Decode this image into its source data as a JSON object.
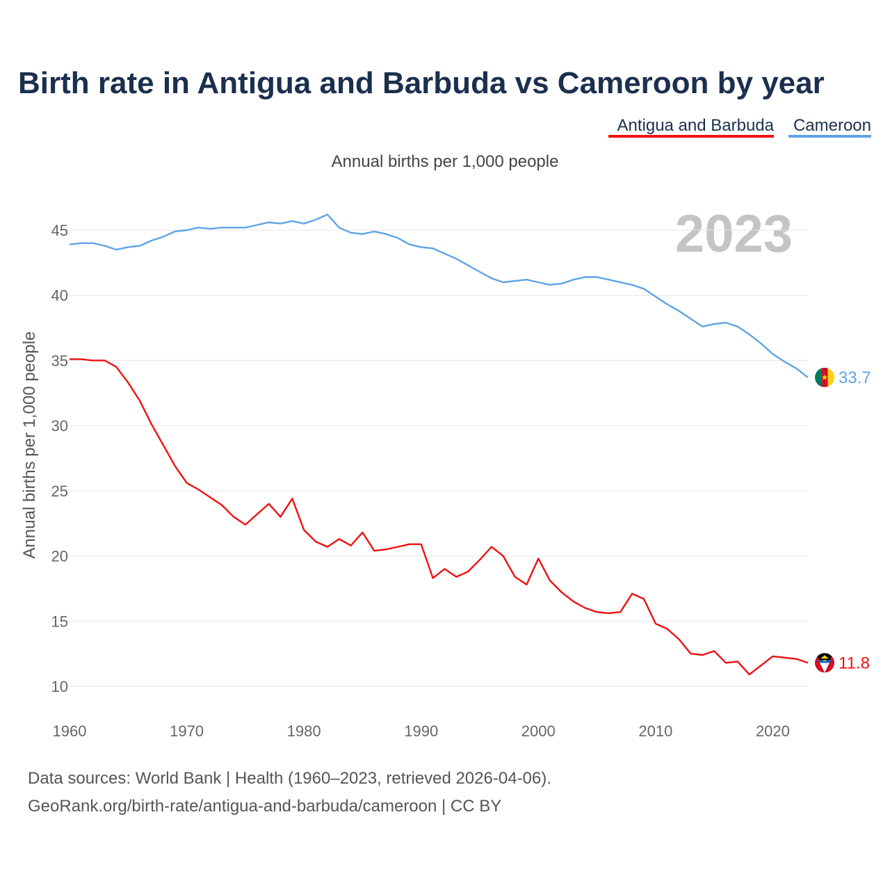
{
  "chart_data": {
    "type": "line",
    "title": "Birth rate in Antigua and Barbuda vs Cameroon by year",
    "subtitle": "Annual births per 1,000 people",
    "ylabel": "Annual births per 1,000 people",
    "xlabel": "",
    "year_label": "2023",
    "xlim": [
      1960,
      2023
    ],
    "ylim": [
      10,
      46.5
    ],
    "xticks": [
      1960,
      1970,
      1980,
      1990,
      2000,
      2010,
      2020
    ],
    "yticks": [
      10,
      15,
      20,
      25,
      30,
      35,
      40,
      45
    ],
    "x": [
      1960,
      1961,
      1962,
      1963,
      1964,
      1965,
      1966,
      1967,
      1968,
      1969,
      1970,
      1971,
      1972,
      1973,
      1974,
      1975,
      1976,
      1977,
      1978,
      1979,
      1980,
      1981,
      1982,
      1983,
      1984,
      1985,
      1986,
      1987,
      1988,
      1989,
      1990,
      1991,
      1992,
      1993,
      1994,
      1995,
      1996,
      1997,
      1998,
      1999,
      2000,
      2001,
      2002,
      2003,
      2004,
      2005,
      2006,
      2007,
      2008,
      2009,
      2010,
      2011,
      2012,
      2013,
      2014,
      2015,
      2016,
      2017,
      2018,
      2019,
      2020,
      2021,
      2022,
      2023
    ],
    "series": [
      {
        "name": "Antigua and Barbuda",
        "color": "#ee1111",
        "end_label": "11.8",
        "values": [
          35.1,
          35.1,
          35.0,
          35.0,
          34.5,
          33.3,
          31.9,
          30.1,
          28.5,
          26.9,
          25.6,
          25.1,
          24.5,
          23.9,
          23.0,
          22.4,
          23.2,
          24.0,
          23.0,
          24.4,
          22.0,
          21.1,
          20.7,
          21.3,
          20.8,
          21.8,
          20.4,
          20.5,
          20.7,
          20.9,
          20.9,
          18.3,
          19.0,
          18.4,
          18.8,
          19.7,
          20.7,
          20.0,
          18.4,
          17.8,
          19.8,
          18.1,
          17.2,
          16.5,
          16.0,
          15.7,
          15.6,
          15.7,
          17.1,
          16.7,
          14.8,
          14.4,
          13.6,
          12.5,
          12.4,
          12.7,
          11.8,
          11.9,
          10.9,
          11.6,
          12.3,
          12.2,
          12.1,
          11.8
        ]
      },
      {
        "name": "Cameroon",
        "color": "#5ea4e6",
        "end_label": "33.7",
        "values": [
          43.9,
          44.0,
          44.0,
          43.8,
          43.5,
          43.7,
          43.8,
          44.2,
          44.5,
          44.9,
          45.0,
          45.2,
          45.1,
          45.2,
          45.2,
          45.2,
          45.4,
          45.6,
          45.5,
          45.7,
          45.5,
          45.8,
          46.2,
          45.2,
          44.8,
          44.7,
          44.9,
          44.7,
          44.4,
          43.9,
          43.7,
          43.6,
          43.2,
          42.8,
          42.3,
          41.8,
          41.3,
          41.0,
          41.1,
          41.2,
          41.0,
          40.8,
          40.9,
          41.2,
          41.4,
          41.4,
          41.2,
          41.0,
          40.8,
          40.5,
          39.9,
          39.3,
          38.8,
          38.2,
          37.6,
          37.8,
          37.9,
          37.6,
          37.0,
          36.3,
          35.5,
          34.9,
          34.4,
          33.7
        ]
      }
    ]
  },
  "source": {
    "line1": "Data sources: World Bank | Health (1960–2023, retrieved 2026-04-06).",
    "line2": "GeoRank.org/birth-rate/antigua-and-barbuda/cameroon | CC BY"
  }
}
